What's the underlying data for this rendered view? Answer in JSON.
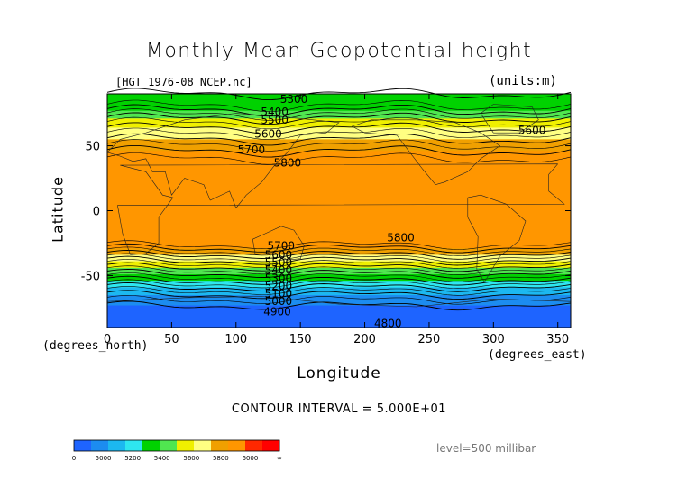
{
  "chart_data": {
    "type": "heatmap",
    "title": "Monthly Mean Geopotential height",
    "file_label": "[HGT_1976-08_NCEP.nc]",
    "units_label": "(units:m)",
    "xlabel": "Longitude",
    "ylabel": "Latitude",
    "x_unit_label": "(degrees_east)",
    "y_unit_label": "(degrees_north)",
    "xlim": [
      0,
      360
    ],
    "ylim": [
      -90,
      90
    ],
    "x_ticks": [
      0,
      50,
      100,
      150,
      200,
      250,
      300,
      350
    ],
    "y_ticks": [
      -50,
      0,
      50
    ],
    "contour_interval_text": "CONTOUR INTERVAL = 5.000E+01",
    "level_text": "level=500 millibar",
    "colorbar": {
      "boundaries": [
        4900,
        5000,
        5100,
        5200,
        5300,
        5400,
        5500,
        5600,
        5700,
        5800,
        5900,
        6000,
        6100
      ],
      "tick_labels": [
        "0",
        "5000",
        "5200",
        "5400",
        "5600",
        "5800",
        "6000",
        "∞"
      ],
      "colors": [
        "#1e64ff",
        "#1c8cf0",
        "#1cb8f0",
        "#2ee6f0",
        "#00d200",
        "#50e650",
        "#f0f000",
        "#ffff82",
        "#f0a000",
        "#ff9600",
        "#ff2800",
        "#ff0000"
      ]
    },
    "zonal_profile": [
      {
        "lat": 90,
        "value": 5300
      },
      {
        "lat": 83,
        "value": 5320
      },
      {
        "lat": 76,
        "value": 5420
      },
      {
        "lat": 70,
        "value": 5520
      },
      {
        "lat": 62,
        "value": 5620
      },
      {
        "lat": 55,
        "value": 5700
      },
      {
        "lat": 47,
        "value": 5790
      },
      {
        "lat": 38,
        "value": 5870
      },
      {
        "lat": 0,
        "value": 5870
      },
      {
        "lat": -26,
        "value": 5860
      },
      {
        "lat": -30,
        "value": 5780
      },
      {
        "lat": -35,
        "value": 5680
      },
      {
        "lat": -40,
        "value": 5570
      },
      {
        "lat": -47,
        "value": 5430
      },
      {
        "lat": -54,
        "value": 5300
      },
      {
        "lat": -60,
        "value": 5180
      },
      {
        "lat": -66,
        "value": 5080
      },
      {
        "lat": -75,
        "value": 4980
      },
      {
        "lat": -90,
        "value": 4950
      }
    ],
    "contour_labels": [
      {
        "text": "5300",
        "lon": 145,
        "lat": 86
      },
      {
        "text": "5400",
        "lon": 130,
        "lat": 76
      },
      {
        "text": "5500",
        "lon": 130,
        "lat": 70
      },
      {
        "text": "5600",
        "lon": 125,
        "lat": 59
      },
      {
        "text": "5700",
        "lon": 112,
        "lat": 47
      },
      {
        "text": "5800",
        "lon": 140,
        "lat": 37
      },
      {
        "text": "5600",
        "lon": 330,
        "lat": 62
      },
      {
        "text": "5800",
        "lon": 228,
        "lat": -21
      },
      {
        "text": "5700",
        "lon": 135,
        "lat": -27
      },
      {
        "text": "5600",
        "lon": 133,
        "lat": -34
      },
      {
        "text": "5500",
        "lon": 133,
        "lat": -40
      },
      {
        "text": "5400",
        "lon": 133,
        "lat": -46
      },
      {
        "text": "5300",
        "lon": 133,
        "lat": -52
      },
      {
        "text": "5200",
        "lon": 133,
        "lat": -58
      },
      {
        "text": "5100",
        "lon": 133,
        "lat": -64
      },
      {
        "text": "5000",
        "lon": 133,
        "lat": -70
      },
      {
        "text": "4900",
        "lon": 132,
        "lat": -78
      },
      {
        "text": "4800",
        "lon": 218,
        "lat": -87
      }
    ]
  }
}
